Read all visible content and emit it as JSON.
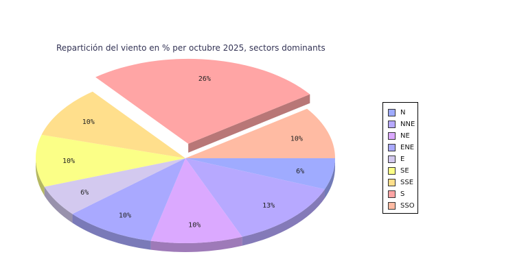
{
  "chart_data": {
    "type": "pie",
    "title": "Repartición del viento en % per octubre 2025, sectors dominants",
    "categories": [
      "N",
      "NNE",
      "NE",
      "ENE",
      "E",
      "SE",
      "SSE",
      "S",
      "SSO"
    ],
    "values": [
      6,
      13,
      10,
      10,
      6,
      10,
      10,
      26,
      10
    ],
    "labels": [
      "6%",
      "13%",
      "10%",
      "10%",
      "6%",
      "10%",
      "10%",
      "26%",
      "10%"
    ],
    "colors": [
      "#9fabff",
      "#b7a9ff",
      "#dba9ff",
      "#a9a9ff",
      "#d3c9ef",
      "#fbff87",
      "#ffdf8c",
      "#ffa5a5",
      "#ffbba3"
    ],
    "exploded": [
      "S"
    ],
    "style": "3d",
    "legend": "right"
  }
}
